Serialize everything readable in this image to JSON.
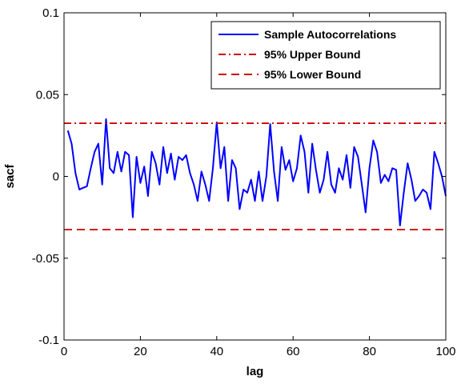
{
  "chart_data": {
    "type": "line",
    "title": "",
    "xlabel": "lag",
    "ylabel": "sacf",
    "xlim": [
      0,
      100
    ],
    "ylim": [
      -0.1,
      0.1
    ],
    "xticks": [
      0,
      20,
      40,
      60,
      80,
      100
    ],
    "xtick_labels": [
      "0",
      "20",
      "40",
      "60",
      "80",
      "100"
    ],
    "yticks": [
      0.1,
      0.05,
      0,
      -0.05,
      -0.1
    ],
    "ytick_labels": [
      "0.1",
      "0.05",
      "0",
      "-0.05",
      "-0.1"
    ],
    "grid": false,
    "legend_position": "top-right",
    "series": [
      {
        "name": "Sample Autocorrelations",
        "color": "#0000ff",
        "style": "solid",
        "x": [
          1,
          2,
          3,
          4,
          5,
          6,
          7,
          8,
          9,
          10,
          11,
          12,
          13,
          14,
          15,
          16,
          17,
          18,
          19,
          20,
          21,
          22,
          23,
          24,
          25,
          26,
          27,
          28,
          29,
          30,
          31,
          32,
          33,
          34,
          35,
          36,
          37,
          38,
          39,
          40,
          41,
          42,
          43,
          44,
          45,
          46,
          47,
          48,
          49,
          50,
          51,
          52,
          53,
          54,
          55,
          56,
          57,
          58,
          59,
          60,
          61,
          62,
          63,
          64,
          65,
          66,
          67,
          68,
          69,
          70,
          71,
          72,
          73,
          74,
          75,
          76,
          77,
          78,
          79,
          80,
          81,
          82,
          83,
          84,
          85,
          86,
          87,
          88,
          89,
          90,
          91,
          92,
          93,
          94,
          95,
          96,
          97,
          98,
          99,
          100
        ],
        "y": [
          0.028,
          0.02,
          0.002,
          -0.008,
          -0.007,
          -0.006,
          0.005,
          0.015,
          0.02,
          -0.005,
          0.035,
          0.005,
          0.002,
          0.015,
          0.003,
          0.015,
          0.013,
          -0.025,
          0.012,
          -0.004,
          0.006,
          -0.012,
          0.015,
          0.008,
          -0.005,
          0.018,
          0.002,
          0.014,
          -0.002,
          0.012,
          0.01,
          0.013,
          0.002,
          -0.005,
          -0.015,
          0.003,
          -0.005,
          -0.015,
          0.005,
          0.033,
          0.005,
          0.018,
          -0.015,
          0.01,
          0.005,
          -0.02,
          -0.008,
          -0.01,
          -0.002,
          -0.015,
          0.003,
          -0.015,
          0.0,
          0.032,
          0.003,
          -0.015,
          0.018,
          0.004,
          0.01,
          -0.003,
          0.005,
          0.025,
          0.015,
          -0.01,
          0.02,
          0.004,
          -0.01,
          -0.002,
          0.015,
          -0.005,
          -0.01,
          0.005,
          -0.002,
          0.013,
          -0.007,
          0.018,
          0.012,
          -0.005,
          -0.022,
          0.005,
          0.022,
          0.015,
          -0.004,
          0.001,
          -0.003,
          0.005,
          0.004,
          -0.03,
          -0.01,
          0.008,
          -0.002,
          -0.015,
          -0.012,
          -0.008,
          -0.01,
          -0.02,
          0.015,
          0.008,
          0.0,
          -0.012
        ]
      },
      {
        "name": "95% Upper Bound",
        "color": "#cc0000",
        "style": "dash-dot",
        "value": 0.0325
      },
      {
        "name": "95% Lower Bound",
        "color": "#cc0000",
        "style": "dashed",
        "value": -0.0325
      }
    ]
  }
}
